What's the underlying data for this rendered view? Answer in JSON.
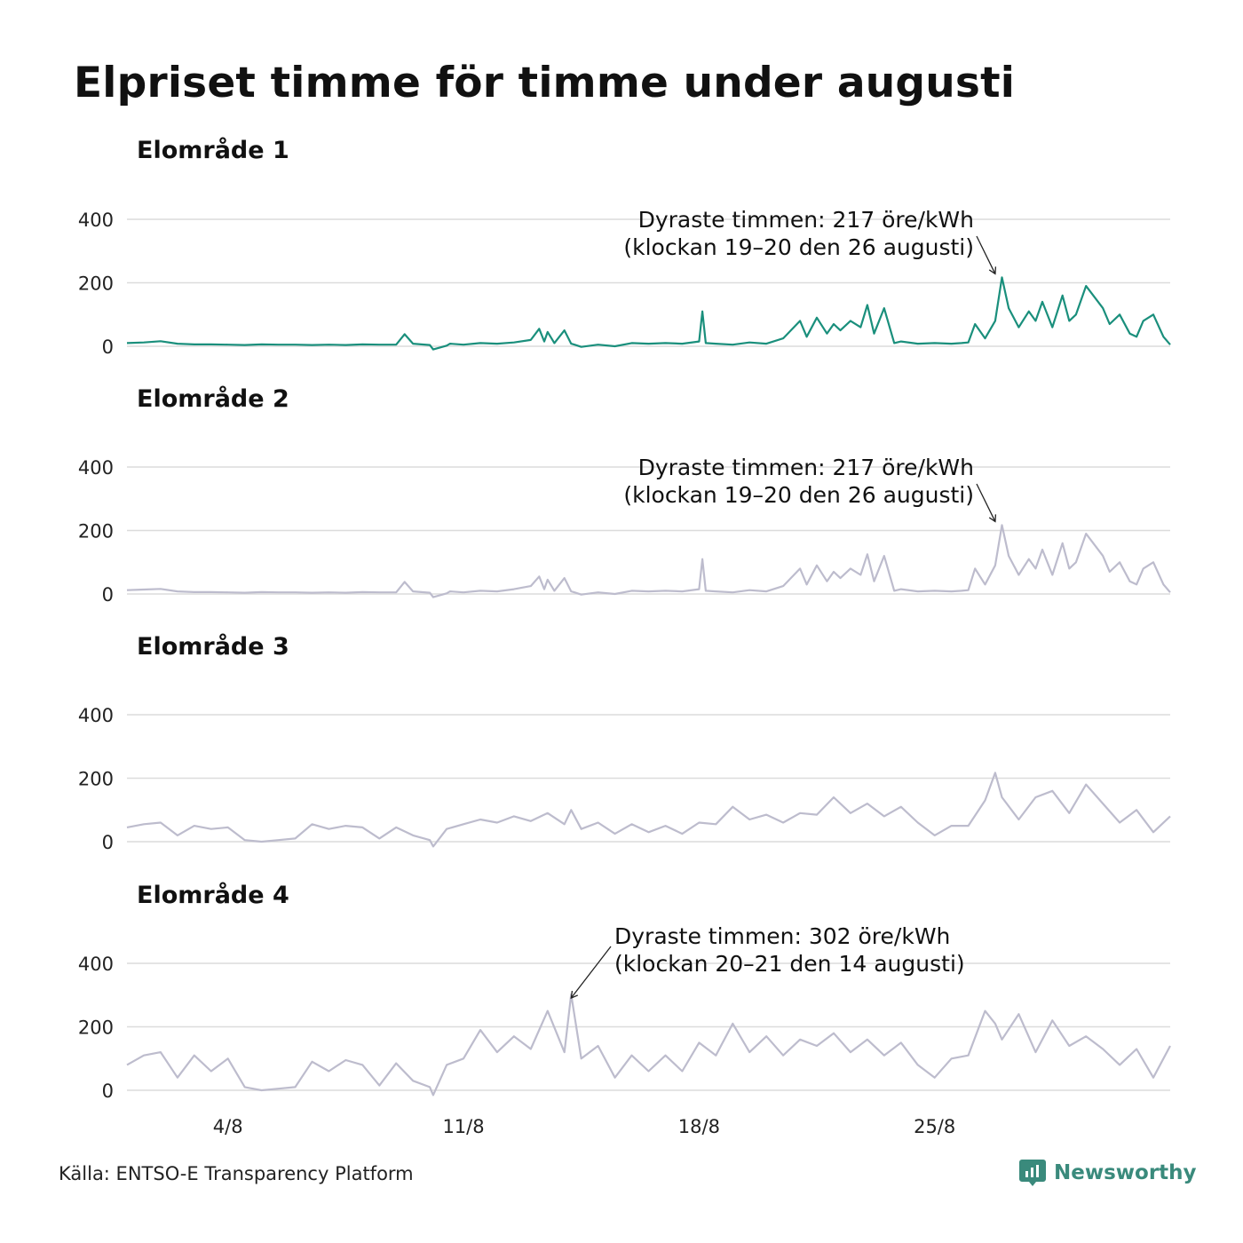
{
  "title": "Elpriset timme för timme under augusti",
  "source": "Källa: ENTSO-E Transparency Platform",
  "brand": "Newsworthy",
  "colors": {
    "accent": "#1a8f7c",
    "muted": "#bdbccd",
    "grid": "#dcdcdc",
    "brand": "#3a8a7c"
  },
  "x_axis": {
    "ticks": [
      "4/8",
      "11/8",
      "18/8",
      "25/8"
    ],
    "tick_days": [
      4,
      11,
      18,
      25
    ]
  },
  "chart_data": [
    {
      "type": "line",
      "title": "Elområde 1",
      "highlight": true,
      "xlim": [
        1,
        32
      ],
      "ylim": [
        0,
        400
      ],
      "yticks": [
        0,
        200,
        400
      ],
      "x": [
        1,
        1.5,
        2,
        2.5,
        3,
        3.5,
        4,
        4.5,
        5,
        5.5,
        6,
        6.5,
        7,
        7.5,
        8,
        8.5,
        9,
        9.25,
        9.5,
        10,
        10.1,
        10.5,
        10.6,
        11,
        11.5,
        12,
        12.5,
        13,
        13.25,
        13.4,
        13.5,
        13.7,
        14,
        14.2,
        14.3,
        14.5,
        15,
        15.5,
        16,
        16.5,
        17,
        17.5,
        18,
        18.1,
        18.2,
        18.5,
        19,
        19.5,
        20,
        20.5,
        21,
        21.2,
        21.5,
        21.8,
        22,
        22.2,
        22.5,
        22.8,
        23,
        23.2,
        23.5,
        23.8,
        24,
        24.5,
        25,
        25.5,
        25.8,
        26,
        26.2,
        26.5,
        26.8,
        27,
        27.2,
        27.5,
        27.8,
        28,
        28.2,
        28.5,
        28.8,
        29,
        29.2,
        29.5,
        30,
        30.2,
        30.5,
        30.8,
        31,
        31.2,
        31.5,
        31.8,
        32
      ],
      "values": [
        10,
        12,
        16,
        8,
        6,
        6,
        5,
        4,
        6,
        5,
        5,
        4,
        5,
        4,
        6,
        5,
        5,
        38,
        8,
        4,
        -10,
        2,
        8,
        5,
        10,
        8,
        12,
        20,
        55,
        15,
        45,
        10,
        50,
        8,
        5,
        -2,
        5,
        0,
        10,
        8,
        10,
        8,
        15,
        110,
        10,
        8,
        5,
        12,
        8,
        25,
        80,
        30,
        90,
        40,
        70,
        50,
        80,
        60,
        130,
        40,
        120,
        10,
        15,
        8,
        10,
        8,
        10,
        12,
        70,
        25,
        80,
        217,
        120,
        60,
        110,
        80,
        140,
        60,
        160,
        80,
        100,
        190,
        120,
        70,
        100,
        40,
        30,
        80,
        100,
        30,
        5
      ],
      "annotation": {
        "line1": "Dyraste timmen: 217 öre/kWh",
        "line2": "(klockan 19–20 den 26 augusti)",
        "peak_x": 26.8,
        "peak_y": 217
      }
    },
    {
      "type": "line",
      "title": "Elområde 2",
      "highlight": false,
      "xlim": [
        1,
        32
      ],
      "ylim": [
        0,
        400
      ],
      "yticks": [
        0,
        200,
        400
      ],
      "x": [
        1,
        1.5,
        2,
        2.5,
        3,
        3.5,
        4,
        4.5,
        5,
        5.5,
        6,
        6.5,
        7,
        7.5,
        8,
        8.5,
        9,
        9.25,
        9.5,
        10,
        10.1,
        10.5,
        10.6,
        11,
        11.5,
        12,
        12.5,
        13,
        13.25,
        13.4,
        13.5,
        13.7,
        14,
        14.2,
        14.3,
        14.5,
        15,
        15.5,
        16,
        16.5,
        17,
        17.5,
        18,
        18.1,
        18.2,
        18.5,
        19,
        19.5,
        20,
        20.5,
        21,
        21.2,
        21.5,
        21.8,
        22,
        22.2,
        22.5,
        22.8,
        23,
        23.2,
        23.5,
        23.8,
        24,
        24.5,
        25,
        25.5,
        25.8,
        26,
        26.2,
        26.5,
        26.8,
        27,
        27.2,
        27.5,
        27.8,
        28,
        28.2,
        28.5,
        28.8,
        29,
        29.2,
        29.5,
        30,
        30.2,
        30.5,
        30.8,
        31,
        31.2,
        31.5,
        31.8,
        32
      ],
      "values": [
        12,
        14,
        16,
        8,
        6,
        6,
        5,
        4,
        6,
        5,
        5,
        4,
        5,
        4,
        6,
        5,
        5,
        38,
        8,
        4,
        -10,
        2,
        8,
        5,
        10,
        8,
        15,
        25,
        55,
        15,
        45,
        10,
        50,
        8,
        5,
        -2,
        5,
        0,
        10,
        8,
        10,
        8,
        15,
        110,
        10,
        8,
        5,
        12,
        8,
        25,
        80,
        30,
        90,
        40,
        70,
        50,
        80,
        60,
        125,
        40,
        120,
        10,
        15,
        8,
        10,
        8,
        10,
        12,
        80,
        30,
        90,
        217,
        120,
        60,
        110,
        80,
        140,
        60,
        160,
        80,
        100,
        190,
        120,
        70,
        100,
        40,
        30,
        80,
        100,
        30,
        5
      ],
      "annotation": {
        "line1": "Dyraste timmen: 217 öre/kWh",
        "line2": "(klockan 19–20 den 26 augusti)",
        "peak_x": 26.8,
        "peak_y": 217
      }
    },
    {
      "type": "line",
      "title": "Elområde 3",
      "highlight": false,
      "xlim": [
        1,
        32
      ],
      "ylim": [
        0,
        400
      ],
      "yticks": [
        0,
        200,
        400
      ],
      "x": [
        1,
        1.5,
        2,
        2.5,
        3,
        3.5,
        4,
        4.5,
        5,
        5.5,
        6,
        6.5,
        7,
        7.5,
        8,
        8.5,
        9,
        9.5,
        10,
        10.1,
        10.5,
        11,
        11.5,
        12,
        12.5,
        13,
        13.5,
        14,
        14.2,
        14.5,
        15,
        15.5,
        16,
        16.5,
        17,
        17.5,
        18,
        18.5,
        19,
        19.5,
        20,
        20.5,
        21,
        21.5,
        22,
        22.5,
        23,
        23.5,
        24,
        24.5,
        25,
        25.5,
        26,
        26.5,
        26.8,
        27,
        27.5,
        28,
        28.5,
        29,
        29.5,
        30,
        30.5,
        31,
        31.5,
        32
      ],
      "values": [
        45,
        55,
        60,
        20,
        50,
        40,
        45,
        5,
        0,
        5,
        10,
        55,
        40,
        50,
        45,
        10,
        45,
        20,
        5,
        -15,
        40,
        55,
        70,
        60,
        80,
        65,
        90,
        55,
        100,
        40,
        60,
        25,
        55,
        30,
        50,
        25,
        60,
        55,
        110,
        70,
        85,
        60,
        90,
        85,
        140,
        90,
        120,
        80,
        110,
        60,
        20,
        50,
        50,
        130,
        217,
        140,
        70,
        140,
        160,
        90,
        180,
        120,
        60,
        100,
        30,
        80
      ]
    },
    {
      "type": "line",
      "title": "Elområde 4",
      "highlight": false,
      "xlim": [
        1,
        32
      ],
      "ylim": [
        0,
        400
      ],
      "yticks": [
        0,
        200,
        400
      ],
      "x": [
        1,
        1.5,
        2,
        2.5,
        3,
        3.5,
        4,
        4.5,
        5,
        5.5,
        6,
        6.5,
        7,
        7.5,
        8,
        8.5,
        9,
        9.5,
        10,
        10.1,
        10.5,
        11,
        11.5,
        12,
        12.5,
        13,
        13.5,
        14,
        14.2,
        14.5,
        15,
        15.5,
        16,
        16.5,
        17,
        17.5,
        18,
        18.5,
        19,
        19.5,
        20,
        20.5,
        21,
        21.5,
        22,
        22.5,
        23,
        23.5,
        24,
        24.5,
        25,
        25.5,
        26,
        26.5,
        26.8,
        27,
        27.5,
        28,
        28.5,
        29,
        29.5,
        30,
        30.5,
        31,
        31.5,
        32
      ],
      "values": [
        80,
        110,
        120,
        40,
        110,
        60,
        100,
        10,
        0,
        5,
        10,
        90,
        60,
        95,
        80,
        15,
        85,
        30,
        10,
        -15,
        80,
        100,
        190,
        120,
        170,
        130,
        250,
        120,
        302,
        100,
        140,
        40,
        110,
        60,
        110,
        60,
        150,
        110,
        210,
        120,
        170,
        110,
        160,
        140,
        180,
        120,
        160,
        110,
        150,
        80,
        40,
        100,
        110,
        250,
        210,
        160,
        240,
        120,
        220,
        140,
        170,
        130,
        80,
        130,
        40,
        140
      ]
    }
  ]
}
